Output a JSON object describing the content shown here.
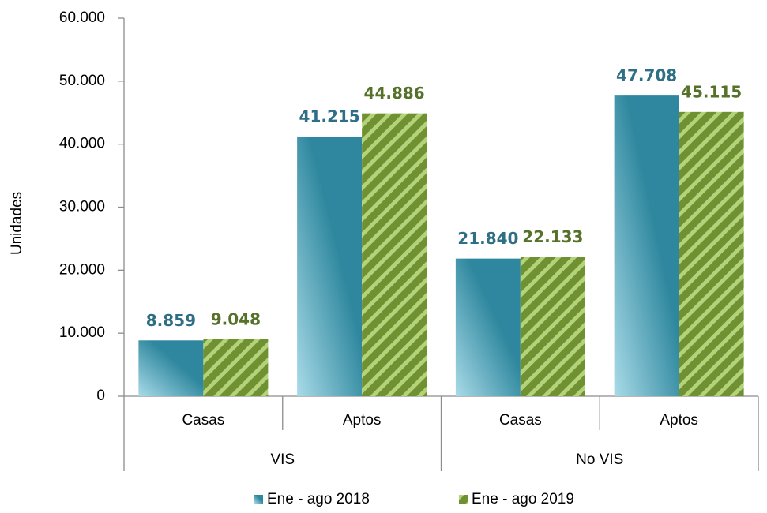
{
  "chart_data": {
    "type": "bar",
    "y_label": "Unidades",
    "categories": [
      "Casas",
      "Aptos",
      "Casas",
      "Aptos"
    ],
    "category_groups": [
      "VIS",
      "No VIS"
    ],
    "series": [
      {
        "name": "Ene - ago 2018",
        "color": "#2e879e",
        "label_color": "#2f6f86",
        "values": [
          8859,
          41215,
          21840,
          47708
        ],
        "value_labels": [
          "8.859",
          "41.215",
          "21.840",
          "47.708"
        ]
      },
      {
        "name": "Ene - ago 2019",
        "color": "#6f9132",
        "label_color": "#56722a",
        "values": [
          9048,
          44886,
          22133,
          45115
        ],
        "value_labels": [
          "9.048",
          "44.886",
          "22.133",
          "45.115"
        ]
      }
    ],
    "ylim": [
      0,
      60000
    ],
    "yticks": [
      0,
      {
        "value": 10000,
        "label": "10.000"
      },
      {
        "value": 20000,
        "label": "20.000"
      },
      {
        "value": 30000,
        "label": "30.000"
      },
      {
        "value": 40000,
        "label": "40.000"
      },
      {
        "value": 50000,
        "label": "50.000"
      },
      {
        "value": 60000,
        "label": "60.000"
      }
    ],
    "legend": "bottom"
  }
}
